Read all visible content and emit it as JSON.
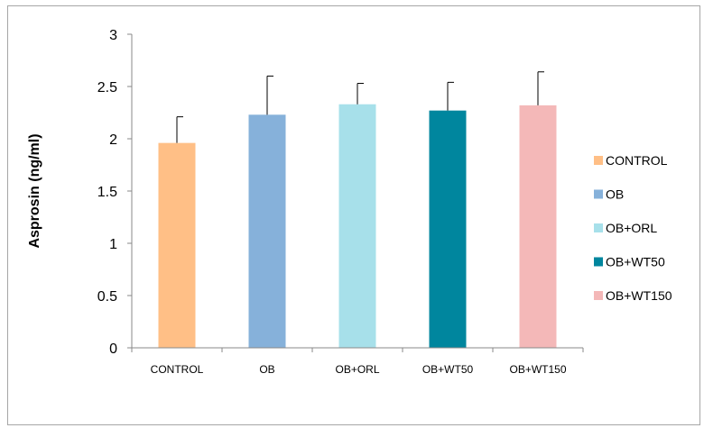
{
  "chart_data": {
    "type": "bar",
    "title": "",
    "xlabel": "",
    "ylabel": "Asprosin (ng/ml)",
    "ylim": [
      0,
      3
    ],
    "yticks": [
      "0",
      "0.5",
      "1",
      "1.5",
      "2",
      "2.5",
      "3"
    ],
    "ytick_values": [
      0,
      0.5,
      1,
      1.5,
      2,
      2.5,
      3
    ],
    "categories": [
      "CONTROL",
      "OB",
      "OB+ORL",
      "OB+WT50",
      "OB+WT150"
    ],
    "values": [
      1.96,
      2.23,
      2.33,
      2.27,
      2.32
    ],
    "error": [
      0.25,
      0.37,
      0.2,
      0.27,
      0.32
    ],
    "colors": [
      "#FFBF86",
      "#86B1DA",
      "#A7E0EA",
      "#00869E",
      "#F4B8B8"
    ],
    "grid": false,
    "legend": {
      "placement": "right",
      "entries": [
        "CONTROL",
        "OB",
        "OB+ORL",
        "OB+WT50",
        "OB+WT150"
      ]
    }
  }
}
